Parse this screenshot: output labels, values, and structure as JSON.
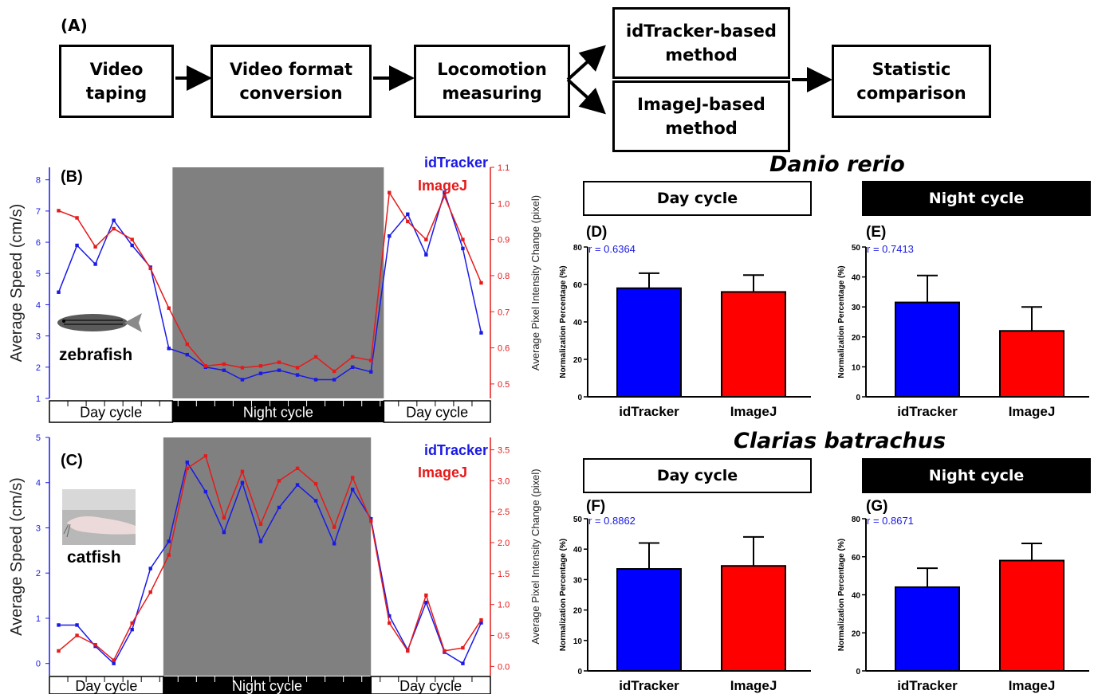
{
  "flowchart": {
    "panel_label": "(A)",
    "steps": [
      "Video\ntaping",
      "Video format\nconversion",
      "Locomotion\nmeasuring",
      "idTracker-based\nmethod",
      "ImageJ-based\nmethod",
      "Statistic\ncomparison"
    ]
  },
  "colors": {
    "idtracker": "#1a1ae6",
    "imagej": "#e61a1a",
    "night_shade": "#808080",
    "bar_blue": "#0000ff",
    "bar_red": "#ff0000"
  },
  "headings": {
    "danio": "Danio rerio",
    "clarias": "Clarias batrachus"
  },
  "cycle_labels": {
    "day": "Day cycle",
    "night": "Night cycle"
  },
  "chart_data": [
    {
      "id": "B",
      "type": "line",
      "panel_label": "(B)",
      "animal_label": "zebrafish",
      "ylabel_left": "Average Speed (cm/s)",
      "ylabel_right": "Average Pixel Intensity Change (pixel)",
      "ylim_left": [
        1,
        8.4
      ],
      "yticks_left": [
        "1",
        "2",
        "3",
        "4",
        "5",
        "6",
        "7",
        "8"
      ],
      "ylim_right": [
        0.46,
        1.1
      ],
      "yticks_right": [
        "0.5",
        "0.6",
        "0.7",
        "0.8",
        "0.9",
        "1.0",
        "1.1"
      ],
      "legend": [
        "idTracker",
        "ImageJ"
      ],
      "x_points": 24,
      "night_range": [
        6.7,
        18.2
      ],
      "series": [
        {
          "name": "idTracker",
          "axis": "left",
          "values": [
            4.4,
            5.9,
            5.3,
            6.7,
            5.9,
            5.2,
            2.6,
            2.4,
            2.0,
            1.9,
            1.6,
            1.8,
            1.9,
            1.75,
            1.6,
            1.6,
            2.0,
            1.85,
            6.2,
            6.9,
            5.6,
            7.6,
            5.8,
            3.1
          ]
        },
        {
          "name": "ImageJ",
          "axis": "right",
          "values": [
            0.98,
            0.96,
            0.88,
            0.93,
            0.9,
            0.82,
            0.71,
            0.61,
            0.55,
            0.555,
            0.545,
            0.55,
            0.56,
            0.545,
            0.575,
            0.535,
            0.575,
            0.565,
            1.03,
            0.95,
            0.9,
            1.02,
            0.9,
            0.78
          ]
        }
      ]
    },
    {
      "id": "C",
      "type": "line",
      "panel_label": "(C)",
      "animal_label": "catfish",
      "ylabel_left": "Average Speed (cm/s)",
      "ylabel_right": "Average Pixel Intensity Change (pixel)",
      "ylim_left": [
        -0.27,
        5
      ],
      "yticks_left": [
        "0",
        "1",
        "2",
        "3",
        "4",
        "5"
      ],
      "ylim_right": [
        -0.15,
        3.7
      ],
      "yticks_right": [
        "0.0",
        "0.5",
        "1.0",
        "1.5",
        "2.0",
        "2.5",
        "3.0",
        "3.5"
      ],
      "legend": [
        "idTracker",
        "ImageJ"
      ],
      "x_points": 24,
      "night_range": [
        6.2,
        17.5
      ],
      "series": [
        {
          "name": "idTracker",
          "axis": "left",
          "values": [
            0.85,
            0.85,
            0.38,
            0.0,
            0.75,
            2.1,
            2.7,
            4.45,
            3.8,
            2.9,
            4.0,
            2.7,
            3.45,
            3.95,
            3.6,
            2.65,
            3.85,
            3.2,
            1.05,
            0.3,
            1.35,
            0.25,
            0.0,
            0.9
          ]
        },
        {
          "name": "ImageJ",
          "axis": "right",
          "values": [
            0.25,
            0.5,
            0.35,
            0.1,
            0.7,
            1.2,
            1.8,
            3.2,
            3.4,
            2.4,
            3.15,
            2.3,
            3.0,
            3.2,
            2.95,
            2.25,
            3.05,
            2.35,
            0.7,
            0.25,
            1.15,
            0.25,
            0.3,
            0.75
          ]
        }
      ]
    },
    {
      "id": "D",
      "type": "bar",
      "panel_label": "(D)",
      "cycle": "Day cycle",
      "r_label": "r = 0.6364",
      "ylabel": "Normalization Percentage (%)",
      "ylim": [
        0,
        80
      ],
      "yticks": [
        "0",
        "20",
        "40",
        "60",
        "80"
      ],
      "categories": [
        "idTracker",
        "ImageJ"
      ],
      "values": [
        58,
        56
      ],
      "errors": [
        8,
        9
      ]
    },
    {
      "id": "E",
      "type": "bar",
      "panel_label": "(E)",
      "cycle": "Night cycle",
      "r_label": "r = 0.7413",
      "ylabel": "Normalization Percentage (%)",
      "ylim": [
        0,
        50
      ],
      "yticks": [
        "0",
        "10",
        "20",
        "30",
        "40",
        "50"
      ],
      "categories": [
        "idTracker",
        "ImageJ"
      ],
      "values": [
        31.5,
        22
      ],
      "errors": [
        9,
        8
      ]
    },
    {
      "id": "F",
      "type": "bar",
      "panel_label": "(F)",
      "cycle": "Day cycle",
      "r_label": "r = 0.8862",
      "ylabel": "Normalization Percentage (%)",
      "ylim": [
        0,
        50
      ],
      "yticks": [
        "0",
        "10",
        "20",
        "30",
        "40",
        "50"
      ],
      "categories": [
        "idTracker",
        "ImageJ"
      ],
      "values": [
        33.5,
        34.5
      ],
      "errors": [
        8.5,
        9.5
      ]
    },
    {
      "id": "G",
      "type": "bar",
      "panel_label": "(G)",
      "cycle": "Night cycle",
      "r_label": "r = 0.8671",
      "ylabel": "Normalization Percentage (%)",
      "ylim": [
        0,
        80
      ],
      "yticks": [
        "0",
        "20",
        "40",
        "60",
        "80"
      ],
      "categories": [
        "idTracker",
        "ImageJ"
      ],
      "values": [
        44,
        58
      ],
      "errors": [
        10,
        9
      ]
    }
  ]
}
